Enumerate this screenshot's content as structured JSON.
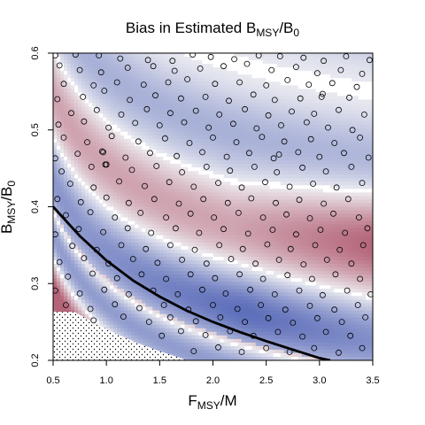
{
  "chart_data": {
    "type": "heatmap",
    "title_parts": {
      "prefix": "Bias in Estimated B",
      "sub1": "MSY",
      "mid": "/B",
      "sub2": "0"
    },
    "xlabel_parts": {
      "main": "F",
      "sub": "MSY",
      "suffix": "/M"
    },
    "ylabel_parts": {
      "main": "B",
      "sub": "MSY",
      "mid": "/B",
      "sub2": "0"
    },
    "xlim": [
      0.5,
      3.5
    ],
    "ylim": [
      0.2,
      0.6
    ],
    "x_ticks": [
      "0.5",
      "1.0",
      "1.5",
      "2.0",
      "2.5",
      "3.0",
      "3.5"
    ],
    "y_ticks": [
      "0.2",
      "0.3",
      "0.4",
      "0.5",
      "0.6"
    ],
    "colors": {
      "negative": "#5f70bb",
      "neutral": "#eeeef2",
      "positive": "#b46478",
      "curve": "#000000"
    },
    "boundary_curve": [
      [
        0.5,
        0.4
      ],
      [
        0.75,
        0.362
      ],
      [
        1.0,
        0.33
      ],
      [
        1.25,
        0.304
      ],
      [
        1.5,
        0.283
      ],
      [
        1.75,
        0.265
      ],
      [
        2.0,
        0.25
      ],
      [
        2.25,
        0.237
      ],
      [
        2.5,
        0.225
      ],
      [
        2.75,
        0.214
      ],
      [
        3.0,
        0.203
      ],
      [
        3.1,
        0.2
      ]
    ],
    "infeasible_region": [
      [
        0.5,
        0.2
      ],
      [
        0.5,
        0.263
      ],
      [
        0.7,
        0.263
      ],
      [
        0.9,
        0.248
      ],
      [
        1.1,
        0.234
      ],
      [
        1.3,
        0.222
      ],
      [
        1.5,
        0.212
      ],
      [
        1.7,
        0.203
      ],
      [
        1.75,
        0.2
      ]
    ],
    "points": [
      [
        0.52,
        0.597
      ],
      [
        0.56,
        0.584
      ],
      [
        0.71,
        0.598
      ],
      [
        0.93,
        0.597
      ],
      [
        1.13,
        0.593
      ],
      [
        1.39,
        0.591
      ],
      [
        1.62,
        0.59
      ],
      [
        1.81,
        0.598
      ],
      [
        1.98,
        0.595
      ],
      [
        2.2,
        0.592
      ],
      [
        2.43,
        0.597
      ],
      [
        2.63,
        0.596
      ],
      [
        2.85,
        0.594
      ],
      [
        3.04,
        0.59
      ],
      [
        3.25,
        0.596
      ],
      [
        3.47,
        0.591
      ],
      [
        0.75,
        0.578
      ],
      [
        0.95,
        0.575
      ],
      [
        1.2,
        0.581
      ],
      [
        1.44,
        0.583
      ],
      [
        1.64,
        0.577
      ],
      [
        1.88,
        0.58
      ],
      [
        2.1,
        0.583
      ],
      [
        2.32,
        0.586
      ],
      [
        2.55,
        0.578
      ],
      [
        2.78,
        0.582
      ],
      [
        2.98,
        0.574
      ],
      [
        3.2,
        0.578
      ],
      [
        3.4,
        0.573
      ],
      [
        0.6,
        0.56
      ],
      [
        0.88,
        0.558
      ],
      [
        1.1,
        0.562
      ],
      [
        1.35,
        0.559
      ],
      [
        1.58,
        0.562
      ],
      [
        1.76,
        0.566
      ],
      [
        2.02,
        0.56
      ],
      [
        2.25,
        0.562
      ],
      [
        2.5,
        0.558
      ],
      [
        2.7,
        0.565
      ],
      [
        2.9,
        0.559
      ],
      [
        3.12,
        0.561
      ],
      [
        3.35,
        0.556
      ],
      [
        0.54,
        0.54
      ],
      [
        0.78,
        0.543
      ],
      [
        0.98,
        0.551
      ],
      [
        1.22,
        0.539
      ],
      [
        1.46,
        0.545
      ],
      [
        1.7,
        0.541
      ],
      [
        1.93,
        0.543
      ],
      [
        2.15,
        0.538
      ],
      [
        2.38,
        0.546
      ],
      [
        2.58,
        0.539
      ],
      [
        2.82,
        0.541
      ],
      [
        3.02,
        0.543
      ],
      [
        3.03,
        0.547
      ],
      [
        3.28,
        0.542
      ],
      [
        0.67,
        0.522
      ],
      [
        0.91,
        0.526
      ],
      [
        1.14,
        0.52
      ],
      [
        1.38,
        0.527
      ],
      [
        1.6,
        0.522
      ],
      [
        1.84,
        0.525
      ],
      [
        2.06,
        0.52
      ],
      [
        2.3,
        0.527
      ],
      [
        2.52,
        0.519
      ],
      [
        2.74,
        0.524
      ],
      [
        2.95,
        0.521
      ],
      [
        3.18,
        0.526
      ],
      [
        3.42,
        0.52
      ],
      [
        0.55,
        0.507
      ],
      [
        0.79,
        0.511
      ],
      [
        1.02,
        0.503
      ],
      [
        1.27,
        0.509
      ],
      [
        1.5,
        0.506
      ],
      [
        1.73,
        0.51
      ],
      [
        1.96,
        0.503
      ],
      [
        2.19,
        0.508
      ],
      [
        2.41,
        0.502
      ],
      [
        2.64,
        0.506
      ],
      [
        2.88,
        0.51
      ],
      [
        3.08,
        0.503
      ],
      [
        3.31,
        0.5
      ],
      [
        0.6,
        0.49
      ],
      [
        0.82,
        0.484
      ],
      [
        1.05,
        0.492
      ],
      [
        1.3,
        0.485
      ],
      [
        1.55,
        0.489
      ],
      [
        1.78,
        0.483
      ],
      [
        2.0,
        0.49
      ],
      [
        2.22,
        0.484
      ],
      [
        2.46,
        0.491
      ],
      [
        2.67,
        0.485
      ],
      [
        2.92,
        0.488
      ],
      [
        3.14,
        0.483
      ],
      [
        3.38,
        0.49
      ],
      [
        0.52,
        0.463
      ],
      [
        0.73,
        0.469
      ],
      [
        0.96,
        0.472
      ],
      [
        0.97,
        0.471
      ],
      [
        1.18,
        0.464
      ],
      [
        1.41,
        0.47
      ],
      [
        1.66,
        0.466
      ],
      [
        1.9,
        0.471
      ],
      [
        2.13,
        0.465
      ],
      [
        2.34,
        0.47
      ],
      [
        2.57,
        0.463
      ],
      [
        2.62,
        0.468
      ],
      [
        2.8,
        0.471
      ],
      [
        3.0,
        0.465
      ],
      [
        3.23,
        0.47
      ],
      [
        3.46,
        0.464
      ],
      [
        0.58,
        0.446
      ],
      [
        0.86,
        0.452
      ],
      [
        0.99,
        0.455
      ],
      [
        1.0,
        0.455
      ],
      [
        1.24,
        0.448
      ],
      [
        1.47,
        0.453
      ],
      [
        1.71,
        0.445
      ],
      [
        1.94,
        0.452
      ],
      [
        2.16,
        0.447
      ],
      [
        2.39,
        0.452
      ],
      [
        2.6,
        0.445
      ],
      [
        2.84,
        0.451
      ],
      [
        3.06,
        0.446
      ],
      [
        3.3,
        0.452
      ],
      [
        0.66,
        0.43
      ],
      [
        0.88,
        0.425
      ],
      [
        1.12,
        0.433
      ],
      [
        1.36,
        0.427
      ],
      [
        1.59,
        0.432
      ],
      [
        1.82,
        0.426
      ],
      [
        2.05,
        0.431
      ],
      [
        2.27,
        0.425
      ],
      [
        2.49,
        0.432
      ],
      [
        2.72,
        0.426
      ],
      [
        2.94,
        0.43
      ],
      [
        3.16,
        0.425
      ],
      [
        3.4,
        0.431
      ],
      [
        0.54,
        0.41
      ],
      [
        0.76,
        0.406
      ],
      [
        1.0,
        0.412
      ],
      [
        1.21,
        0.405
      ],
      [
        1.45,
        0.41
      ],
      [
        1.68,
        0.404
      ],
      [
        1.91,
        0.41
      ],
      [
        2.14,
        0.405
      ],
      [
        2.36,
        0.411
      ],
      [
        2.59,
        0.405
      ],
      [
        2.81,
        0.409
      ],
      [
        3.04,
        0.404
      ],
      [
        3.27,
        0.41
      ],
      [
        0.62,
        0.389
      ],
      [
        0.85,
        0.393
      ],
      [
        1.08,
        0.386
      ],
      [
        1.32,
        0.392
      ],
      [
        1.56,
        0.386
      ],
      [
        1.79,
        0.391
      ],
      [
        2.01,
        0.386
      ],
      [
        2.24,
        0.392
      ],
      [
        2.47,
        0.386
      ],
      [
        2.69,
        0.39
      ],
      [
        2.91,
        0.385
      ],
      [
        3.13,
        0.391
      ],
      [
        3.37,
        0.386
      ],
      [
        0.52,
        0.364
      ],
      [
        0.74,
        0.371
      ],
      [
        0.97,
        0.367
      ],
      [
        1.2,
        0.372
      ],
      [
        1.42,
        0.366
      ],
      [
        1.65,
        0.372
      ],
      [
        1.87,
        0.366
      ],
      [
        2.1,
        0.371
      ],
      [
        2.33,
        0.365
      ],
      [
        2.56,
        0.37
      ],
      [
        2.78,
        0.364
      ],
      [
        3.01,
        0.37
      ],
      [
        3.24,
        0.366
      ],
      [
        3.45,
        0.372
      ],
      [
        0.68,
        0.349
      ],
      [
        0.91,
        0.344
      ],
      [
        1.14,
        0.35
      ],
      [
        1.37,
        0.345
      ],
      [
        1.6,
        0.35
      ],
      [
        1.83,
        0.344
      ],
      [
        2.06,
        0.35
      ],
      [
        2.28,
        0.345
      ],
      [
        2.51,
        0.351
      ],
      [
        2.73,
        0.345
      ],
      [
        2.96,
        0.35
      ],
      [
        3.19,
        0.344
      ],
      [
        3.41,
        0.35
      ],
      [
        0.56,
        0.328
      ],
      [
        0.79,
        0.333
      ],
      [
        1.02,
        0.326
      ],
      [
        1.25,
        0.332
      ],
      [
        1.48,
        0.327
      ],
      [
        1.71,
        0.331
      ],
      [
        1.94,
        0.326
      ],
      [
        2.17,
        0.332
      ],
      [
        2.4,
        0.326
      ],
      [
        2.62,
        0.331
      ],
      [
        2.85,
        0.325
      ],
      [
        3.07,
        0.331
      ],
      [
        3.3,
        0.326
      ],
      [
        0.64,
        0.309
      ],
      [
        0.87,
        0.313
      ],
      [
        1.1,
        0.307
      ],
      [
        1.33,
        0.312
      ],
      [
        1.56,
        0.306
      ],
      [
        1.79,
        0.312
      ],
      [
        2.02,
        0.307
      ],
      [
        2.25,
        0.312
      ],
      [
        2.47,
        0.306
      ],
      [
        2.7,
        0.311
      ],
      [
        2.93,
        0.306
      ],
      [
        3.15,
        0.312
      ],
      [
        3.38,
        0.306
      ],
      [
        0.52,
        0.291
      ],
      [
        0.75,
        0.287
      ],
      [
        0.98,
        0.292
      ],
      [
        1.21,
        0.286
      ],
      [
        1.44,
        0.291
      ],
      [
        1.67,
        0.286
      ],
      [
        1.9,
        0.292
      ],
      [
        2.12,
        0.287
      ],
      [
        2.35,
        0.292
      ],
      [
        2.58,
        0.286
      ],
      [
        2.81,
        0.291
      ],
      [
        3.03,
        0.285
      ],
      [
        3.26,
        0.291
      ],
      [
        3.48,
        0.286
      ],
      [
        0.62,
        0.272
      ],
      [
        0.85,
        0.267
      ],
      [
        1.08,
        0.273
      ],
      [
        1.31,
        0.268
      ],
      [
        1.54,
        0.272
      ],
      [
        1.77,
        0.266
      ],
      [
        2.0,
        0.272
      ],
      [
        2.23,
        0.267
      ],
      [
        2.45,
        0.272
      ],
      [
        2.68,
        0.266
      ],
      [
        2.91,
        0.271
      ],
      [
        3.14,
        0.266
      ],
      [
        3.36,
        0.272
      ],
      [
        0.88,
        0.252
      ],
      [
        1.16,
        0.257
      ],
      [
        1.4,
        0.25
      ],
      [
        1.6,
        0.256
      ],
      [
        1.84,
        0.251
      ],
      [
        2.07,
        0.256
      ],
      [
        2.3,
        0.25
      ],
      [
        2.52,
        0.255
      ],
      [
        2.75,
        0.249
      ],
      [
        2.98,
        0.255
      ],
      [
        3.21,
        0.25
      ],
      [
        3.43,
        0.256
      ],
      [
        1.52,
        0.232
      ],
      [
        1.7,
        0.238
      ],
      [
        1.93,
        0.233
      ],
      [
        2.16,
        0.238
      ],
      [
        2.38,
        0.232
      ],
      [
        2.61,
        0.237
      ],
      [
        2.84,
        0.231
      ],
      [
        3.06,
        0.237
      ],
      [
        3.29,
        0.232
      ],
      [
        1.82,
        0.212
      ],
      [
        2.05,
        0.217
      ],
      [
        2.27,
        0.211
      ],
      [
        2.5,
        0.216
      ],
      [
        2.72,
        0.211
      ],
      [
        2.95,
        0.216
      ],
      [
        3.18,
        0.21
      ],
      [
        3.4,
        0.216
      ]
    ]
  }
}
